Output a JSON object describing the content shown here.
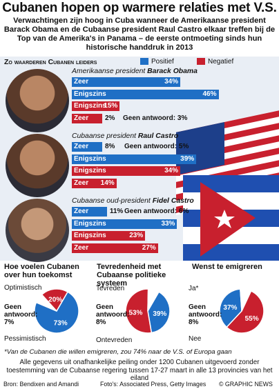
{
  "header": {
    "title": "Cubanen hopen op warmere relaties met V.S.",
    "subtitle": "Verwachtingen zijn hoog in Cuba wanneer de Amerikaanse president Barack Obama en de Cubaanse president Raul Castro elkaar treffen bij de Top van de Amerika's in Panama – de eerste ontmoeting sinds hun historische handdruk in 2013"
  },
  "colors": {
    "positive": "#1f6fc5",
    "negative": "#c8202e",
    "panel": "#e9eef5"
  },
  "chart_data": [
    {
      "type": "bar",
      "title": "Zo waarderen Cubanen leiders",
      "legend": [
        "Positief",
        "Negatief"
      ],
      "groups": [
        {
          "leader_prefix": "Amerikaanse president",
          "leader_name": "Barack Obama",
          "bars": [
            {
              "label": "Zeer",
              "value": 34,
              "sentiment": "positief",
              "value_label": "34%"
            },
            {
              "label": "Enigszins",
              "value": 46,
              "sentiment": "positief",
              "value_label": "46%"
            },
            {
              "label": "Enigszins",
              "value": 15,
              "sentiment": "negatief",
              "value_label": "15%"
            },
            {
              "label": "Zeer",
              "value": 2,
              "sentiment": "negatief",
              "value_label": "2%"
            }
          ],
          "no_answer": "Geen antwoord: 3%"
        },
        {
          "leader_prefix": "Cubaanse president",
          "leader_name": "Raul Castro",
          "bars": [
            {
              "label": "Zeer",
              "value": 8,
              "sentiment": "positief",
              "value_label": "8%"
            },
            {
              "label": "Enigszins",
              "value": 39,
              "sentiment": "positief",
              "value_label": "39%"
            },
            {
              "label": "Enigszins",
              "value": 34,
              "sentiment": "negatief",
              "value_label": "34%"
            },
            {
              "label": "Zeer",
              "value": 14,
              "sentiment": "negatief",
              "value_label": "14%"
            }
          ],
          "no_answer": "Geen antwoord: 5%"
        },
        {
          "leader_prefix": "Cubaanse oud-president",
          "leader_name": "Fidel Castro",
          "bars": [
            {
              "label": "Zeer",
              "value": 11,
              "sentiment": "positief",
              "value_label": "11%"
            },
            {
              "label": "Enigszins",
              "value": 33,
              "sentiment": "positief",
              "value_label": "33%"
            },
            {
              "label": "Enigszins",
              "value": 23,
              "sentiment": "negatief",
              "value_label": "23%"
            },
            {
              "label": "Zeer",
              "value": 27,
              "sentiment": "negatief",
              "value_label": "27%"
            }
          ],
          "no_answer": "Geen antwoord: 6%"
        }
      ]
    },
    {
      "type": "pie",
      "title": "Hoe voelen Cubanen over hun toekomst",
      "slices": [
        {
          "label": "Optimistisch",
          "value": 73,
          "value_label": "73%",
          "color": "#1f6fc5"
        },
        {
          "label": "Geen antwoord: 7%",
          "value": 7,
          "value_label": "",
          "color": "#ffffff"
        },
        {
          "label": "Pessimistisch",
          "value": 20,
          "value_label": "20%",
          "color": "#c8202e"
        }
      ]
    },
    {
      "type": "pie",
      "title": "Tevredenheid met Cubaanse politieke systeem",
      "slices": [
        {
          "label": "Tevreden",
          "value": 39,
          "value_label": "39%",
          "color": "#1f6fc5"
        },
        {
          "label": "Ontevreden",
          "value": 53,
          "value_label": "53%",
          "color": "#c8202e"
        },
        {
          "label": "Geen antwoord: 8%",
          "value": 8,
          "value_label": "",
          "color": "#ffffff"
        }
      ]
    },
    {
      "type": "pie",
      "title": "Wenst te emigreren",
      "slices": [
        {
          "label": "Ja*",
          "value": 55,
          "value_label": "55%",
          "color": "#c8202e"
        },
        {
          "label": "Nee",
          "value": 37,
          "value_label": "37%",
          "color": "#1f6fc5"
        },
        {
          "label": "Geen antwoord: 8%",
          "value": 8,
          "value_label": "",
          "color": "#ffffff"
        }
      ]
    }
  ],
  "footnote": "*Van de Cubanen die willen emigreren, zou 74% naar de V.S. of Europa gaan",
  "methodology": "Alle gegevens uit onafhankelijke peiling onder 1200 Cubanen uitgevoerd zonder toestemming van de Cubaanse regering tussen 17-27 maart in alle 13 provincies van het eiland",
  "credits": {
    "source": "Bron: Bendixen and Amandi",
    "photos": "Foto's: Associated Press, Getty Images",
    "brand": "© GRAPHIC NEWS"
  },
  "watermark": "GN GRAPHIC NEWS"
}
